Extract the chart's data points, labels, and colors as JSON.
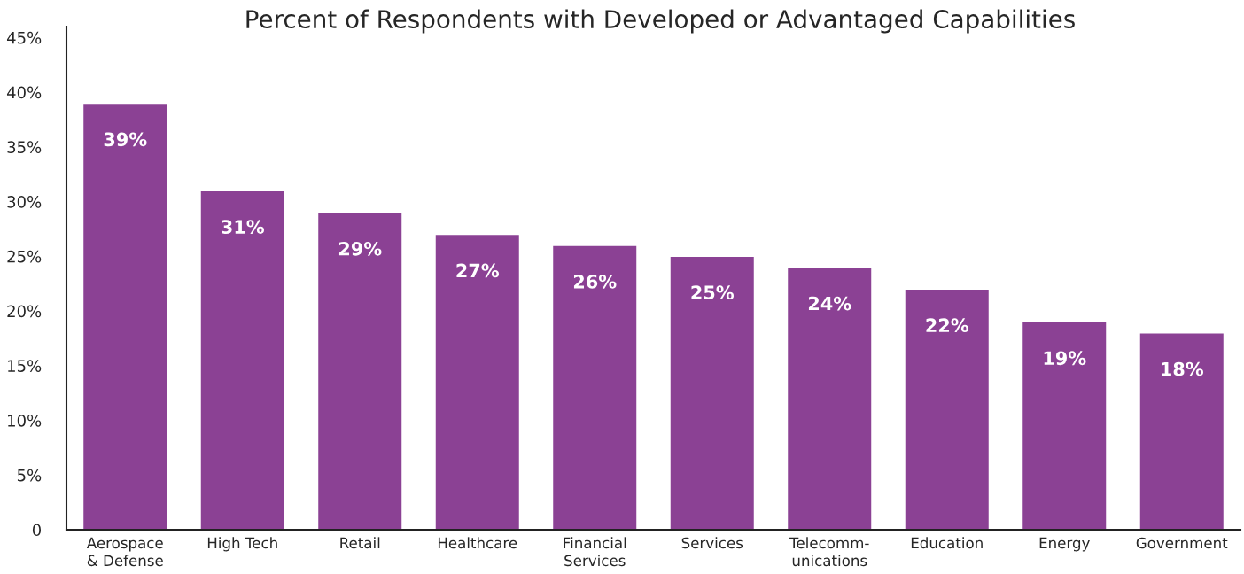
{
  "chart_data": {
    "type": "bar",
    "title": "Percent of Respondents with Developed or Advantaged Capabilities",
    "categories": [
      "Aerospace\n& Defense",
      "High Tech",
      "Retail",
      "Healthcare",
      "Financial\nServices",
      "Services",
      "Telecomm-\nunications",
      "Education",
      "Energy",
      "Government"
    ],
    "values": [
      39,
      31,
      29,
      27,
      26,
      25,
      24,
      22,
      19,
      18
    ],
    "value_labels": [
      "39%",
      "31%",
      "29%",
      "27%",
      "26%",
      "25%",
      "24%",
      "22%",
      "19%",
      "18%"
    ],
    "color": "#8b4194",
    "ylim": [
      0,
      46
    ],
    "yticks": [
      0,
      {
        "value": 5,
        "label": "5%"
      },
      {
        "value": 10,
        "label": "10%"
      },
      {
        "value": 15,
        "label": "15%"
      },
      {
        "value": 20,
        "label": "20%"
      },
      {
        "value": 25,
        "label": "25%"
      },
      {
        "value": 30,
        "label": "30%"
      },
      {
        "value": 35,
        "label": "35%"
      },
      {
        "value": 40,
        "label": "40%"
      },
      {
        "value": 45,
        "label": "45%"
      }
    ],
    "grid": false,
    "legend": false
  }
}
